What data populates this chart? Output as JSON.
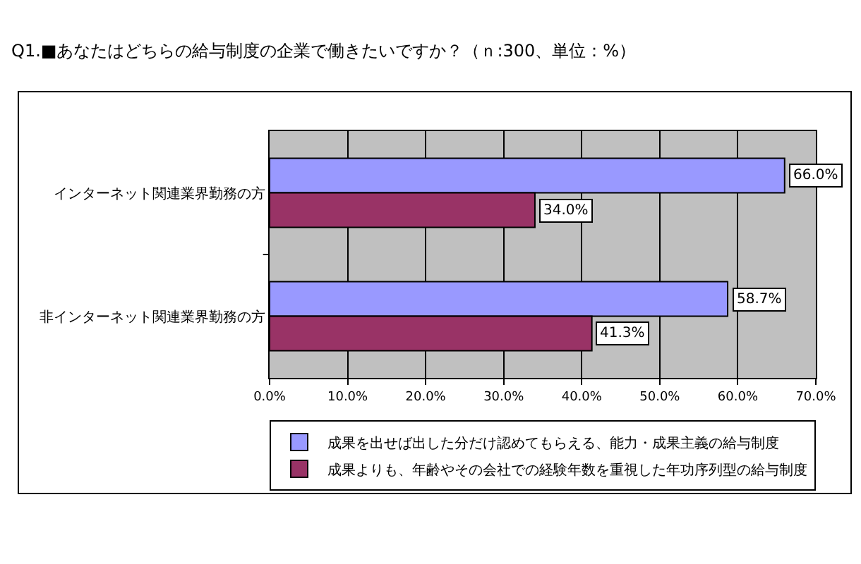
{
  "chart_data": {
    "type": "bar",
    "orientation": "horizontal",
    "title": "Q1.■あなたはどちらの給与制度の企業で働きたいですか？（ｎ:300、単位：%）",
    "categories": [
      "インターネット関連業界勤務の方",
      "非インターネット関連業界勤務の方"
    ],
    "series": [
      {
        "name": "成果を出せば出した分だけ認めてもらえる、能力・成果主義の給与制度",
        "color": "#9999ff",
        "values": [
          66.0,
          58.7
        ],
        "value_labels": [
          "66.0%",
          "58.7%"
        ]
      },
      {
        "name": "成果よりも、年齢やその会社での経験年数を重視した年功序列型の給与制度",
        "color": "#993366",
        "values": [
          34.0,
          41.3
        ],
        "value_labels": [
          "34.0%",
          "41.3%"
        ]
      }
    ],
    "xlim": [
      0,
      70
    ],
    "xticks": [
      {
        "value": 0,
        "label": "0.0%"
      },
      {
        "value": 10,
        "label": "10.0%"
      },
      {
        "value": 20,
        "label": "20.0%"
      },
      {
        "value": 30,
        "label": "30.0%"
      },
      {
        "value": 40,
        "label": "40.0%"
      },
      {
        "value": 50,
        "label": "50.0%"
      },
      {
        "value": 60,
        "label": "60.0%"
      },
      {
        "value": 70,
        "label": "70.0%"
      }
    ],
    "grid": "x",
    "legend": "bottom"
  }
}
